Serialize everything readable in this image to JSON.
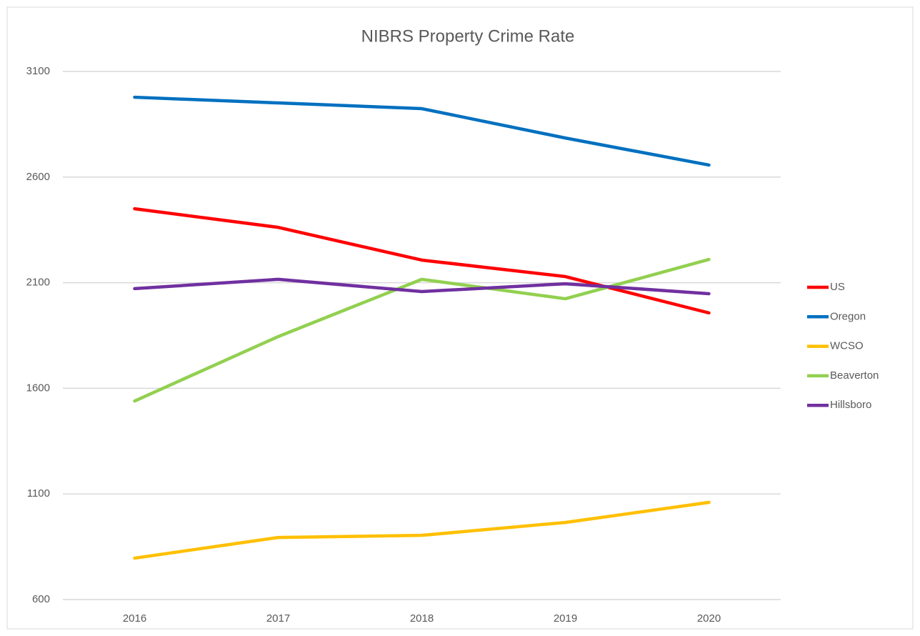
{
  "chart_data": {
    "type": "line",
    "title": "NIBRS Property Crime Rate",
    "categories": [
      "2016",
      "2017",
      "2018",
      "2019",
      "2020"
    ],
    "series": [
      {
        "name": "US",
        "color": "#ff0000",
        "values": [
          2450,
          2362,
          2207,
          2129,
          1957
        ]
      },
      {
        "name": "Oregon",
        "color": "#0070c0",
        "values": [
          2978,
          2951,
          2924,
          2785,
          2657
        ]
      },
      {
        "name": "WCSO",
        "color": "#ffc000",
        "values": [
          796,
          894,
          904,
          965,
          1060
        ]
      },
      {
        "name": "Beaverton",
        "color": "#92d050",
        "values": [
          1540,
          1845,
          2116,
          2024,
          2210
        ]
      },
      {
        "name": "Hillsboro",
        "color": "#7030a0",
        "values": [
          2072,
          2116,
          2058,
          2095,
          2048
        ]
      }
    ],
    "ylim": [
      600,
      3100
    ],
    "yticks": [
      600,
      1100,
      1600,
      2100,
      2600,
      3100
    ],
    "grid": true,
    "legend": "right"
  }
}
